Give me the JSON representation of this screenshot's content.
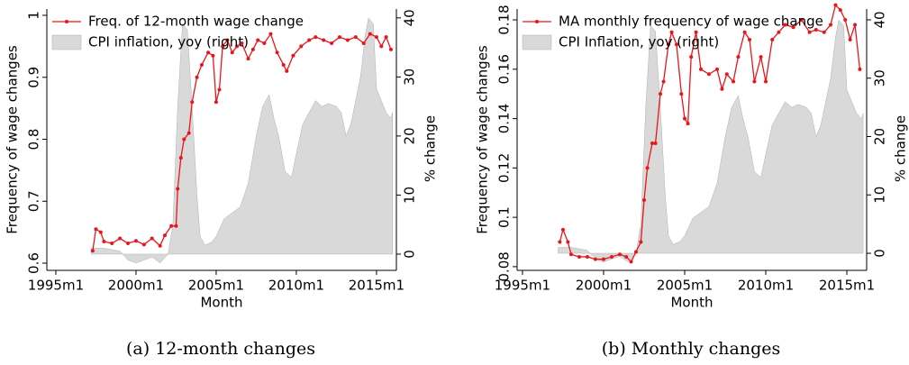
{
  "chart_data": [
    {
      "type": "line",
      "caption": "(a) 12-month changes",
      "x_label": "Month",
      "y_label": "Frequency of wage changes",
      "y2_label": "% change",
      "legend": "upper left",
      "xlim": [
        1994.44,
        2016.24
      ],
      "xticks": [
        {
          "value": 1995,
          "label": "1995m1"
        },
        {
          "value": 2000,
          "label": "2000m1"
        },
        {
          "value": 2005,
          "label": "2005m1"
        },
        {
          "value": 2010,
          "label": "2010m1"
        },
        {
          "value": 2015,
          "label": "2015m1"
        }
      ],
      "ylim": [
        0.5884,
        1.0102
      ],
      "yticks": [
        0.6,
        0.7,
        0.8,
        0.9,
        1
      ],
      "y2lim": [
        -2.75,
        41.5
      ],
      "y2ticks": [
        0,
        10,
        20,
        30,
        40
      ],
      "series": [
        {
          "name": "CPI inflation, yoy (right)",
          "type": "area",
          "axis": "y2",
          "color": "#d9d9d9",
          "x": [
            1997.2,
            1998,
            1999,
            1999.5,
            2000,
            2000.5,
            2001,
            2001.5,
            2002,
            2002.3,
            2002.6,
            2002.9,
            2003.2,
            2003.5,
            2003.8,
            2004,
            2004.3,
            2004.7,
            2005,
            2005.5,
            2006,
            2006.5,
            2007,
            2007.5,
            2007.9,
            2008.3,
            2008.6,
            2008.9,
            2009.3,
            2009.7,
            2010,
            2010.4,
            2010.8,
            2011.2,
            2011.6,
            2012,
            2012.5,
            2012.8,
            2013.1,
            2013.4,
            2013.7,
            2014,
            2014.3,
            2014.5,
            2014.8,
            2015,
            2015.3,
            2015.6,
            2015.9,
            2016
          ],
          "values": [
            1,
            1,
            0.5,
            -1,
            -1.5,
            -1,
            -0.5,
            -1.5,
            0,
            5,
            25,
            39,
            38,
            25,
            10,
            3,
            1.5,
            2,
            3,
            6,
            7,
            8,
            12,
            20,
            25,
            27,
            23,
            20,
            14,
            13,
            17,
            22,
            24,
            26,
            25,
            25.5,
            25,
            24,
            20,
            22,
            26,
            30,
            37,
            40,
            39,
            28,
            26,
            24,
            23,
            24
          ]
        },
        {
          "name": "Freq. of 12-month wage change",
          "type": "line",
          "color": "#e8161b",
          "x": [
            1997.3,
            1997.5,
            1997.8,
            1998,
            1998.5,
            1999,
            1999.5,
            2000,
            2000.5,
            2001,
            2001.5,
            2001.8,
            2002.2,
            2002.5,
            2002.6,
            2002.8,
            2003,
            2003.3,
            2003.5,
            2003.8,
            2004.1,
            2004.5,
            2004.8,
            2005,
            2005.2,
            2005.4,
            2005.7,
            2006,
            2006.3,
            2006.6,
            2007,
            2007.3,
            2007.6,
            2008,
            2008.4,
            2008.8,
            2009.2,
            2009.4,
            2009.8,
            2010.3,
            2010.8,
            2011.2,
            2011.7,
            2012.2,
            2012.7,
            2013.2,
            2013.7,
            2014.2,
            2014.6,
            2015,
            2015.3,
            2015.6,
            2015.9
          ],
          "values": [
            0.62,
            0.655,
            0.65,
            0.635,
            0.632,
            0.64,
            0.632,
            0.636,
            0.63,
            0.64,
            0.628,
            0.645,
            0.66,
            0.66,
            0.72,
            0.77,
            0.8,
            0.81,
            0.86,
            0.9,
            0.92,
            0.94,
            0.935,
            0.86,
            0.88,
            0.95,
            0.96,
            0.94,
            0.95,
            0.955,
            0.93,
            0.945,
            0.96,
            0.955,
            0.97,
            0.94,
            0.92,
            0.91,
            0.935,
            0.95,
            0.96,
            0.965,
            0.96,
            0.955,
            0.965,
            0.96,
            0.965,
            0.955,
            0.97,
            0.965,
            0.95,
            0.965,
            0.945
          ]
        }
      ]
    },
    {
      "type": "line",
      "caption": "(b) Monthly changes",
      "x_label": "Month",
      "y_label": "Frequency of wage changes",
      "y2_label": "% change",
      "legend": "upper left",
      "xlim": [
        1994.67,
        2016.22
      ],
      "xticks": [
        {
          "value": 1995,
          "label": "1995m1"
        },
        {
          "value": 2000,
          "label": "2000m1"
        },
        {
          "value": 2005,
          "label": "2005m1"
        },
        {
          "value": 2010,
          "label": "2010m1"
        },
        {
          "value": 2015,
          "label": "2015m1"
        }
      ],
      "ylim": [
        0.0785,
        0.1844
      ],
      "yticks": [
        0.08,
        0.1,
        0.12,
        0.14,
        0.16,
        0.18
      ],
      "y2lim": [
        -2.93,
        41.85
      ],
      "y2ticks": [
        0,
        10,
        20,
        30,
        40
      ],
      "series": [
        {
          "name": "CPI Inflation, yoy (right)",
          "type": "area",
          "axis": "y2",
          "color": "#d9d9d9",
          "x": [
            1997.2,
            1998,
            1999,
            1999.5,
            2000,
            2000.5,
            2001,
            2001.5,
            2002,
            2002.3,
            2002.6,
            2002.9,
            2003.2,
            2003.5,
            2003.8,
            2004,
            2004.3,
            2004.7,
            2005,
            2005.5,
            2006,
            2006.5,
            2007,
            2007.5,
            2007.9,
            2008.3,
            2008.6,
            2008.9,
            2009.3,
            2009.7,
            2010,
            2010.4,
            2010.8,
            2011.2,
            2011.6,
            2012,
            2012.5,
            2012.8,
            2013.1,
            2013.4,
            2013.7,
            2014,
            2014.3,
            2014.5,
            2014.8,
            2015,
            2015.3,
            2015.6,
            2015.9,
            2016
          ],
          "values": [
            1,
            1,
            0.5,
            -1,
            -1.5,
            -1,
            -0.5,
            -1.5,
            0,
            5,
            25,
            39,
            38,
            25,
            10,
            3,
            1.5,
            2,
            3,
            6,
            7,
            8,
            12,
            20,
            25,
            27,
            23,
            20,
            14,
            13,
            17,
            22,
            24,
            26,
            25,
            25.5,
            25,
            24,
            20,
            22,
            26,
            30,
            37,
            40,
            39,
            28,
            26,
            24,
            23,
            24
          ]
        },
        {
          "name": "MA monthly frequency of wage change",
          "type": "line",
          "color": "#e8161b",
          "x": [
            1997.3,
            1997.5,
            1997.8,
            1998,
            1998.5,
            1999,
            1999.5,
            2000,
            2000.5,
            2001,
            2001.4,
            2001.7,
            2002,
            2002.3,
            2002.5,
            2002.7,
            2003,
            2003.2,
            2003.5,
            2003.7,
            2004,
            2004.2,
            2004.5,
            2004.8,
            2005,
            2005.2,
            2005.4,
            2005.7,
            2006,
            2006.5,
            2007,
            2007.3,
            2007.6,
            2008,
            2008.3,
            2008.7,
            2009,
            2009.3,
            2009.7,
            2010,
            2010.4,
            2010.8,
            2011.2,
            2011.7,
            2012.2,
            2012.7,
            2013.1,
            2013.6,
            2014,
            2014.3,
            2014.6,
            2014.9,
            2015.2,
            2015.5,
            2015.8
          ],
          "values": [
            0.09,
            0.095,
            0.09,
            0.085,
            0.084,
            0.084,
            0.083,
            0.083,
            0.084,
            0.085,
            0.084,
            0.082,
            0.086,
            0.09,
            0.107,
            0.12,
            0.13,
            0.13,
            0.15,
            0.155,
            0.17,
            0.175,
            0.17,
            0.15,
            0.14,
            0.138,
            0.165,
            0.175,
            0.16,
            0.158,
            0.16,
            0.152,
            0.158,
            0.155,
            0.165,
            0.175,
            0.172,
            0.155,
            0.165,
            0.155,
            0.172,
            0.175,
            0.178,
            0.177,
            0.18,
            0.175,
            0.176,
            0.175,
            0.178,
            0.186,
            0.184,
            0.18,
            0.172,
            0.178,
            0.16
          ]
        }
      ]
    }
  ]
}
